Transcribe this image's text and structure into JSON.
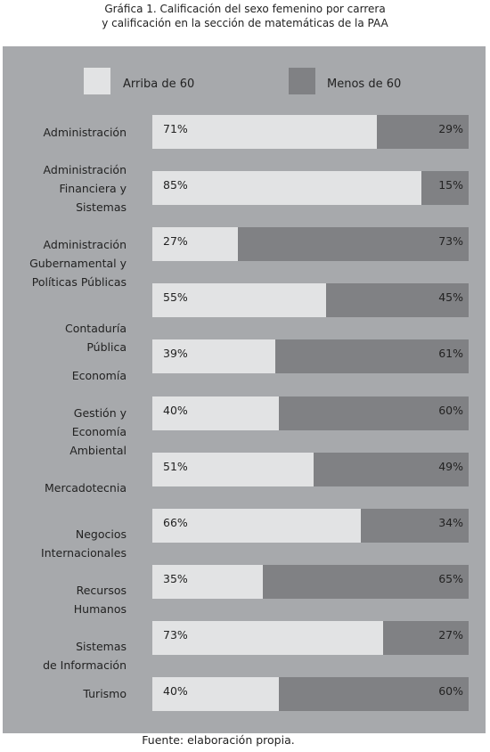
{
  "title_lines": [
    "Gráfica 1. Calificación del sexo femenino por carrera",
    "y calificación en la sección de matemáticas de la PAA"
  ],
  "footer": "Fuente: elaboración propia.",
  "colors": {
    "panel": "#a7a9ac",
    "above": "#e2e3e4",
    "below": "#808184"
  },
  "chart_data": {
    "type": "bar",
    "orientation": "horizontal",
    "stacked": true,
    "normalized": true,
    "legend_position": "top",
    "grid": false,
    "xlim": [
      0,
      100
    ],
    "categories": [
      [
        "Administración"
      ],
      [
        "Administración",
        "Financiera y",
        "Sistemas"
      ],
      [
        "Administración",
        "Gubernamental y",
        "Políticas Públicas"
      ],
      [
        "Contaduría",
        "Pública"
      ],
      [
        "Economía"
      ],
      [
        "Gestión y",
        "Economía",
        "Ambiental"
      ],
      [
        "Mercadotecnia"
      ],
      [
        "Negocios",
        "Internacionales"
      ],
      [
        "Recursos",
        "Humanos"
      ],
      [
        "Sistemas",
        "de Información"
      ],
      [
        "Turismo"
      ]
    ],
    "series": [
      {
        "name": "Arriba de 60",
        "values": [
          71,
          85,
          27,
          55,
          39,
          40,
          51,
          66,
          35,
          73,
          40
        ],
        "labels": [
          "71%",
          "85%",
          "27%",
          "55%",
          "39%",
          "40%",
          "51%",
          "66%",
          "35%",
          "73%",
          "40%"
        ]
      },
      {
        "name": "Menos de 60",
        "values": [
          29,
          15,
          73,
          45,
          61,
          60,
          49,
          34,
          65,
          27,
          60
        ],
        "labels": [
          "29%",
          "15%",
          "73%",
          "45%",
          "61%",
          "60%",
          "49%",
          "34%",
          "65%",
          "27%",
          "60%"
        ]
      }
    ]
  }
}
